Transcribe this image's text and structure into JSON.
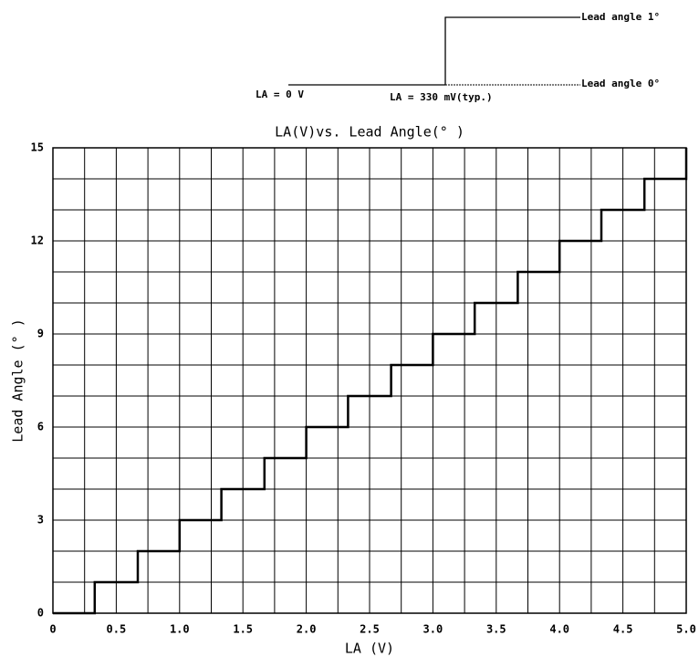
{
  "chart_data": {
    "type": "step",
    "title": "LA(V)vs. Lead Angle(° )",
    "x_label": "LA (V)",
    "y_label": "Lead Angle (° )",
    "annotations": [
      "Lead angle 1°",
      "Lead angle 0°",
      "LA = 0 V",
      "LA = 330 mV(typ.)"
    ],
    "x": [
      0,
      0.33,
      0.67,
      1.0,
      1.33,
      1.67,
      2.0,
      2.33,
      2.67,
      3.0,
      3.33,
      3.67,
      4.0,
      4.33,
      4.67,
      5.0
    ],
    "values": [
      0,
      1,
      2,
      3,
      4,
      5,
      6,
      7,
      8,
      9,
      10,
      11,
      12,
      13,
      14,
      15
    ],
    "color": "#000000",
    "xlim": [
      0,
      5
    ],
    "ylim": [
      0,
      15
    ],
    "xticks": [
      0,
      0.5,
      {
        "value": 1,
        "label": "1.0"
      },
      1.5,
      {
        "value": 2,
        "label": "2.0"
      },
      2.5,
      {
        "value": 3,
        "label": "3.0"
      },
      3.5,
      {
        "value": 4,
        "label": "4.0"
      },
      4.5,
      {
        "value": 5,
        "label": "5.0"
      }
    ],
    "yticks": [
      0,
      3,
      6,
      9,
      12,
      15
    ],
    "xgrid": [
      0.25,
      0.5,
      0.75,
      1,
      1.25,
      1.5,
      1.75,
      2,
      2.25,
      2.5,
      2.75,
      3,
      3.25,
      3.5,
      3.75,
      4,
      4.25,
      4.5,
      4.75
    ],
    "ygrid": [
      1,
      2,
      3,
      4,
      5,
      6,
      7,
      8,
      9,
      10,
      11,
      12,
      13,
      14
    ],
    "grid": true
  }
}
